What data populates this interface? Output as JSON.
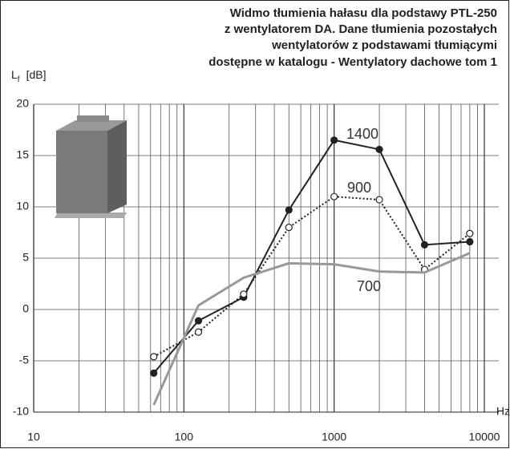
{
  "chart_data": {
    "type": "line",
    "title": [
      "Widmo tłumienia hałasu dla podstawy  PTL-250",
      "z wentylatorem DA.  Dane tłumienia pozostałych",
      "wentylatorów z podstawami tłumiącymi",
      "dostępne w katalogu - Wentylatory dachowe tom 1"
    ],
    "y_label": {
      "main": "L",
      "sub": "f",
      "unit": "[dB]"
    },
    "x_label": "Hz",
    "x": [
      63,
      125,
      250,
      500,
      1000,
      2000,
      4000,
      8000
    ],
    "series": [
      {
        "name": "1400",
        "color": "#222222",
        "dash": "solid",
        "marker": "filled",
        "values": [
          -6.2,
          -1.1,
          1.2,
          9.7,
          16.5,
          15.6,
          6.3,
          6.6
        ]
      },
      {
        "name": "900",
        "color": "#222222",
        "dash": "dotted",
        "marker": "open",
        "values": [
          -4.6,
          -2.2,
          1.5,
          8.0,
          11.0,
          10.7,
          3.9,
          7.4
        ]
      },
      {
        "name": "700",
        "color": "#999999",
        "dash": "solid",
        "marker": "none",
        "values": [
          -9.3,
          0.4,
          3.1,
          4.5,
          4.4,
          3.7,
          3.6,
          5.5
        ]
      }
    ],
    "x_log": true,
    "xlim": [
      10,
      10000
    ],
    "xticks": [
      10,
      100,
      1000,
      10000
    ],
    "xminor_ticks": [
      20,
      30,
      40,
      50,
      60,
      70,
      80,
      90,
      200,
      300,
      400,
      500,
      600,
      700,
      800,
      900,
      2000,
      3000,
      4000,
      5000,
      6000,
      7000,
      8000,
      9000
    ],
    "ylim": [
      -10,
      20
    ],
    "yticks": [
      -10,
      -5,
      0,
      5,
      10,
      15,
      20
    ],
    "grid": true
  }
}
